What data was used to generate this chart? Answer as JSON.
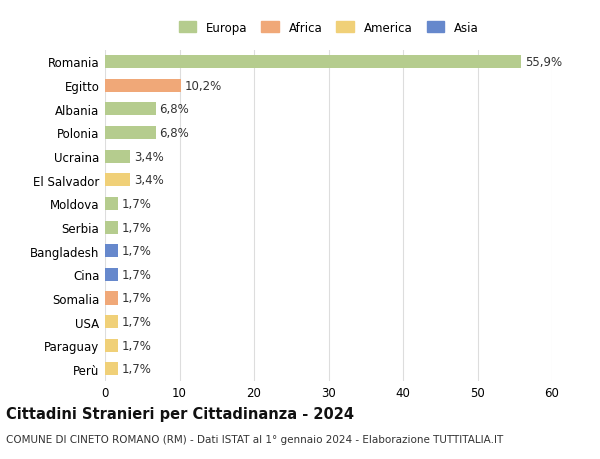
{
  "countries": [
    "Romania",
    "Egitto",
    "Albania",
    "Polonia",
    "Ucraina",
    "El Salvador",
    "Moldova",
    "Serbia",
    "Bangladesh",
    "Cina",
    "Somalia",
    "USA",
    "Paraguay",
    "Perù"
  ],
  "values": [
    55.9,
    10.2,
    6.8,
    6.8,
    3.4,
    3.4,
    1.7,
    1.7,
    1.7,
    1.7,
    1.7,
    1.7,
    1.7,
    1.7
  ],
  "labels": [
    "55,9%",
    "10,2%",
    "6,8%",
    "6,8%",
    "3,4%",
    "3,4%",
    "1,7%",
    "1,7%",
    "1,7%",
    "1,7%",
    "1,7%",
    "1,7%",
    "1,7%",
    "1,7%"
  ],
  "continents": [
    "Europa",
    "Africa",
    "Europa",
    "Europa",
    "Europa",
    "America",
    "Europa",
    "Europa",
    "Asia",
    "Asia",
    "Africa",
    "America",
    "America",
    "America"
  ],
  "colors": {
    "Europa": "#b5cc8e",
    "Africa": "#f0a878",
    "America": "#f0d078",
    "Asia": "#6688cc"
  },
  "xlim": [
    0,
    60
  ],
  "xticks": [
    0,
    10,
    20,
    30,
    40,
    50,
    60
  ],
  "title": "Cittadini Stranieri per Cittadinanza - 2024",
  "subtitle": "COMUNE DI CINETO ROMANO (RM) - Dati ISTAT al 1° gennaio 2024 - Elaborazione TUTTITALIA.IT",
  "background_color": "#ffffff",
  "grid_color": "#dddddd",
  "bar_height": 0.55,
  "label_fontsize": 8.5,
  "tick_fontsize": 8.5,
  "title_fontsize": 10.5,
  "subtitle_fontsize": 7.5,
  "legend_items": [
    "Europa",
    "Africa",
    "America",
    "Asia"
  ]
}
